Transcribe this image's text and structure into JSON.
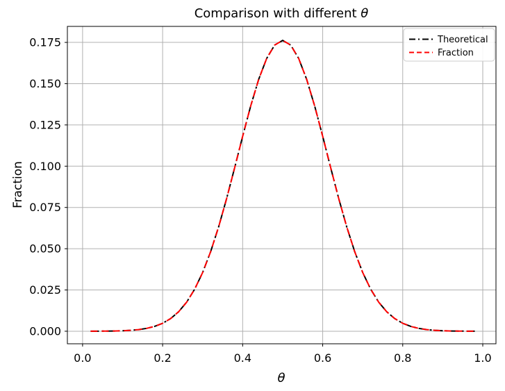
{
  "title": {
    "prefix": "Comparison with different ",
    "symbol": "θ"
  },
  "xlabel": "θ",
  "ylabel": "Fraction",
  "legend": {
    "position": "upper right",
    "items": [
      {
        "label": "Theoretical",
        "color": "#000000",
        "linestyle": "dashdot"
      },
      {
        "label": "Fraction",
        "color": "#ff0000",
        "linestyle": "dashed"
      }
    ]
  },
  "chart_data": {
    "type": "line",
    "title": "Comparison with different θ",
    "xlabel": "θ",
    "ylabel": "Fraction",
    "grid": true,
    "legend_position": "upper right",
    "xlim": [
      -0.038,
      1.033
    ],
    "ylim": [
      -0.0076,
      0.1847
    ],
    "x_tick_values": [
      0.0,
      0.2,
      0.4,
      0.6,
      0.8,
      1.0
    ],
    "x_tick_labels": [
      "0.0",
      "0.2",
      "0.4",
      "0.6",
      "0.8",
      "1.0"
    ],
    "y_tick_values": [
      0.0,
      0.025,
      0.05,
      0.075,
      0.1,
      0.125,
      0.15,
      0.175
    ],
    "y_tick_labels": [
      "0.000",
      "0.025",
      "0.050",
      "0.075",
      "0.100",
      "0.125",
      "0.150",
      "0.175"
    ],
    "x": [
      0.02,
      0.04,
      0.06,
      0.08,
      0.1,
      0.12,
      0.14,
      0.16,
      0.18,
      0.2,
      0.22,
      0.24,
      0.26,
      0.28,
      0.3,
      0.32,
      0.34,
      0.36,
      0.38,
      0.4,
      0.42,
      0.44,
      0.46,
      0.48,
      0.5,
      0.52,
      0.54,
      0.56,
      0.58,
      0.6,
      0.62,
      0.64,
      0.66,
      0.68,
      0.7,
      0.72,
      0.74,
      0.76,
      0.78,
      0.8,
      0.82,
      0.84,
      0.86,
      0.88,
      0.9,
      0.92,
      0.94,
      0.96,
      0.98
    ],
    "series": [
      {
        "name": "Theoretical",
        "color": "#000000",
        "linestyle": "dashdot",
        "values": [
          2e-05,
          4e-05,
          8e-05,
          0.00015,
          0.00029,
          0.00055,
          0.00099,
          0.00173,
          0.00293,
          0.00481,
          0.00766,
          0.01179,
          0.0176,
          0.02543,
          0.03557,
          0.04821,
          0.06328,
          0.08045,
          0.09905,
          0.11811,
          0.13641,
          0.15257,
          0.16528,
          0.1734,
          0.1762,
          0.1734,
          0.16528,
          0.15257,
          0.13641,
          0.11811,
          0.09905,
          0.08045,
          0.06328,
          0.04821,
          0.03557,
          0.02543,
          0.0176,
          0.01179,
          0.00766,
          0.00481,
          0.00293,
          0.00173,
          0.00099,
          0.00055,
          0.00029,
          0.00015,
          8e-05,
          4e-05,
          2e-05
        ]
      },
      {
        "name": "Fraction",
        "color": "#ff0000",
        "linestyle": "dashed",
        "values": [
          2e-05,
          4e-05,
          8e-05,
          0.00015,
          0.00029,
          0.00055,
          0.00099,
          0.00173,
          0.00293,
          0.00481,
          0.00766,
          0.01179,
          0.0176,
          0.02543,
          0.03557,
          0.04821,
          0.06328,
          0.08045,
          0.09905,
          0.11811,
          0.13641,
          0.15257,
          0.16528,
          0.1734,
          0.1762,
          0.1734,
          0.16528,
          0.15257,
          0.13641,
          0.11811,
          0.09905,
          0.08045,
          0.06328,
          0.04821,
          0.03557,
          0.02543,
          0.0176,
          0.01179,
          0.00766,
          0.00481,
          0.00293,
          0.00173,
          0.00099,
          0.00055,
          0.00029,
          0.00015,
          8e-05,
          4e-05,
          2e-05
        ]
      }
    ]
  }
}
